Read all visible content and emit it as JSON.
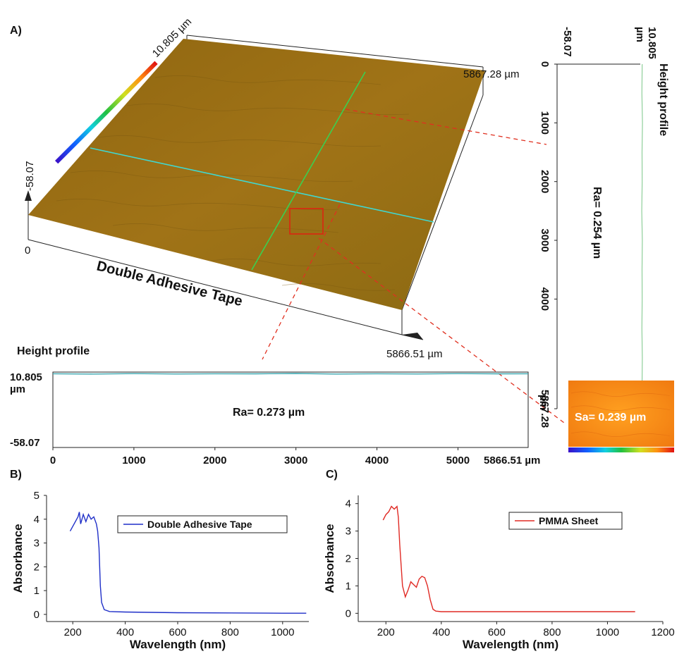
{
  "panel_labels": {
    "a": "A)",
    "b": "B)",
    "c": "C)"
  },
  "surface": {
    "sample_label": "Double Adhesive Tape",
    "colorbar_max": "10.805 µm",
    "colorbar_min": "-58.07",
    "origin_label": "0",
    "y_extent_label": "5867.28 µm",
    "x_extent_label": "5866.51 µm",
    "surface_color": "#9a6e14"
  },
  "inset": {
    "text": "Sa= 0.239 µm"
  },
  "chart_data": [
    {
      "type": "line",
      "title": "Height profile",
      "orientation": "horizontal",
      "ra_text": "Ra= 0.273 µm",
      "y_top_label": "10.805",
      "y_unit_label": "µm",
      "y_bottom_label": "-58.07",
      "x_ticks": [
        "0",
        "1000",
        "2000",
        "3000",
        "4000",
        "5000"
      ],
      "x_tick_values": [
        0,
        1000,
        2000,
        3000,
        4000,
        5000
      ],
      "x_end_label": "5866.51 µm",
      "xlim": [
        0,
        5866.51
      ],
      "ylim": [
        -58.07,
        10.805
      ],
      "series": [
        {
          "color": "#3aa7b0",
          "x": [
            0,
            500,
            1000,
            1500,
            2000,
            2500,
            3000,
            3500,
            4000,
            4500,
            5000,
            5500,
            5866.51
          ],
          "values": [
            8.0,
            7.7,
            8.1,
            7.8,
            8.0,
            7.9,
            8.2,
            7.7,
            8.0,
            7.8,
            8.1,
            7.9,
            8.0
          ]
        }
      ]
    },
    {
      "type": "line",
      "title": "Height profile",
      "orientation": "vertical",
      "ra_text": "Ra= 0.254 µm",
      "h_top_label": "10.805",
      "h_unit_label": "µm",
      "h_bottom_label": "-58.07",
      "pos_ticks": [
        "0",
        "1000",
        "2000",
        "3000",
        "4000",
        "5867.28"
      ],
      "pos_tick_values": [
        0,
        1000,
        2000,
        3000,
        4000,
        5867.28
      ],
      "pos_end_unit": "µm",
      "xlim": [
        0,
        5867.28
      ],
      "ylim": [
        -58.07,
        10.805
      ],
      "series": [
        {
          "color": "#8fcf9a",
          "x": [
            0,
            500,
            1000,
            1500,
            2000,
            2500,
            3000,
            3500,
            4000,
            4500,
            5000,
            5500,
            5867.28
          ],
          "values": [
            8.0,
            7.8,
            8.2,
            7.9,
            8.0,
            7.7,
            8.1,
            7.9,
            8.0,
            7.8,
            8.1,
            7.9,
            8.0
          ]
        }
      ]
    },
    {
      "type": "line",
      "xlabel": "Wavelength (nm)",
      "ylabel": "Absorbance",
      "xlim": [
        100,
        1100
      ],
      "ylim": [
        -0.3,
        5
      ],
      "x_ticks": [
        200,
        400,
        600,
        800,
        1000
      ],
      "y_ticks": [
        0,
        1,
        2,
        3,
        4,
        5
      ],
      "legend": "top-right",
      "series": [
        {
          "name": "Double Adhesive Tape",
          "color": "#1f2fc8",
          "x": [
            190,
            200,
            210,
            220,
            225,
            230,
            240,
            250,
            260,
            270,
            280,
            290,
            295,
            300,
            305,
            310,
            320,
            340,
            400,
            600,
            800,
            1000,
            1090
          ],
          "values": [
            3.5,
            3.7,
            3.9,
            4.1,
            4.3,
            3.8,
            4.2,
            3.9,
            4.2,
            4.0,
            4.1,
            3.8,
            3.5,
            2.8,
            1.2,
            0.5,
            0.2,
            0.12,
            0.1,
            0.07,
            0.06,
            0.05,
            0.05
          ]
        }
      ]
    },
    {
      "type": "line",
      "xlabel": "Wavelength (nm)",
      "ylabel": "Absorbance",
      "xlim": [
        100,
        1200
      ],
      "ylim": [
        -0.3,
        4.3
      ],
      "x_ticks": [
        200,
        400,
        600,
        800,
        1000,
        1200
      ],
      "y_ticks": [
        0,
        1,
        2,
        3,
        4
      ],
      "legend": "top-right",
      "series": [
        {
          "name": "PMMA Sheet",
          "color": "#e02a24",
          "x": [
            190,
            200,
            210,
            220,
            230,
            240,
            245,
            250,
            260,
            270,
            280,
            290,
            300,
            310,
            320,
            330,
            340,
            350,
            360,
            370,
            380,
            400,
            600,
            800,
            1000,
            1100
          ],
          "values": [
            3.4,
            3.6,
            3.7,
            3.9,
            3.8,
            3.9,
            3.5,
            2.5,
            1.0,
            0.6,
            0.85,
            1.15,
            1.05,
            0.95,
            1.25,
            1.35,
            1.3,
            1.0,
            0.5,
            0.15,
            0.08,
            0.06,
            0.06,
            0.06,
            0.06,
            0.06
          ]
        }
      ]
    }
  ]
}
